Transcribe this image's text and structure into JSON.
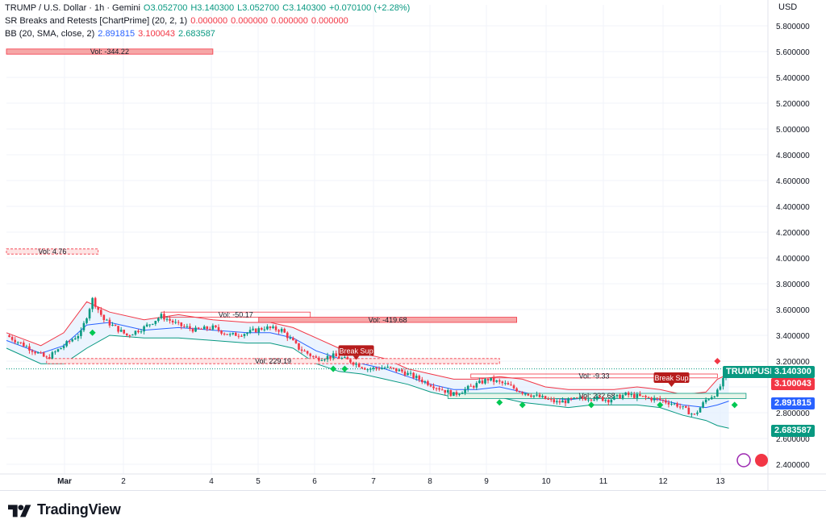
{
  "header": {
    "symbol_line": "TRUMP / U.S. Dollar · 1h · Gemini",
    "o": "O3.052700",
    "h": "H3.140300",
    "l": "L3.052700",
    "c": "C3.140300",
    "chg": "+0.070100 (+2.28%)",
    "sr_title": "SR Breaks and Retests [ChartPrime] (20, 2, 1)",
    "sr_values": [
      "0.000000",
      "0.000000",
      "0.000000",
      "0.000000"
    ],
    "bb_title": "BB (20, SMA, close, 2)",
    "bb_values": [
      "2.891815",
      "3.100043",
      "2.683587"
    ]
  },
  "currency": "USD",
  "colors": {
    "up": "#089981",
    "down": "#f23645",
    "basis": "#2962ff",
    "upper": "#f23645",
    "lower": "#089981",
    "fill": "#e3effd",
    "zone_red": "#f6a7a7",
    "zone_green": "#a5d6a7",
    "diamond": "#00c853"
  },
  "tags": {
    "last": {
      "label": "TRUMPUSD",
      "value": "3.140300",
      "color": "#089981"
    },
    "upper": {
      "value": "3.100043",
      "color": "#f23645"
    },
    "basis": {
      "value": "2.891815",
      "color": "#2962ff"
    },
    "lower": {
      "value": "2.683587",
      "color": "#089981"
    }
  },
  "brand": {
    "name": "TradingView"
  },
  "chart_data": {
    "type": "candlestick",
    "ylim": [
      2.4,
      5.9
    ],
    "y_ticks": [
      "5.800000",
      "5.600000",
      "5.400000",
      "5.200000",
      "5.000000",
      "4.800000",
      "4.600000",
      "4.400000",
      "4.200000",
      "4.000000",
      "3.800000",
      "3.600000",
      "3.400000",
      "3.200000",
      "3.000000",
      "2.800000",
      "2.600000",
      "2.400000"
    ],
    "x_ticks": [
      "Mar",
      "2",
      "4",
      "5",
      "6",
      "7",
      "8",
      "9",
      "10",
      "11",
      "12",
      "13"
    ],
    "close_path": [
      [
        0,
        3.4
      ],
      [
        4,
        3.3
      ],
      [
        7,
        3.22
      ],
      [
        10,
        3.32
      ],
      [
        13,
        3.42
      ],
      [
        15,
        3.68
      ],
      [
        17,
        3.52
      ],
      [
        19,
        3.46
      ],
      [
        21,
        3.4
      ],
      [
        24,
        3.46
      ],
      [
        27,
        3.55
      ],
      [
        30,
        3.48
      ],
      [
        33,
        3.44
      ],
      [
        36,
        3.46
      ],
      [
        39,
        3.4
      ],
      [
        42,
        3.42
      ],
      [
        45,
        3.46
      ],
      [
        48,
        3.44
      ],
      [
        51,
        3.3
      ],
      [
        54,
        3.22
      ],
      [
        57,
        3.24
      ],
      [
        60,
        3.2
      ],
      [
        63,
        3.14
      ],
      [
        66,
        3.15
      ],
      [
        69,
        3.12
      ],
      [
        72,
        3.06
      ],
      [
        75,
        3.0
      ],
      [
        78,
        2.94
      ],
      [
        81,
        3.0
      ],
      [
        84,
        3.06
      ],
      [
        87,
        3.02
      ],
      [
        90,
        2.96
      ],
      [
        93,
        2.92
      ],
      [
        96,
        2.88
      ],
      [
        99,
        2.9
      ],
      [
        102,
        2.92
      ],
      [
        105,
        2.9
      ],
      [
        108,
        2.94
      ],
      [
        111,
        2.92
      ],
      [
        114,
        2.9
      ],
      [
        117,
        2.86
      ],
      [
        120,
        2.78
      ],
      [
        122,
        2.9
      ],
      [
        124,
        2.96
      ],
      [
        126,
        3.14
      ]
    ],
    "upper_band": [
      [
        0,
        3.42
      ],
      [
        6,
        3.32
      ],
      [
        10,
        3.42
      ],
      [
        14,
        3.66
      ],
      [
        18,
        3.58
      ],
      [
        24,
        3.52
      ],
      [
        30,
        3.56
      ],
      [
        36,
        3.52
      ],
      [
        42,
        3.5
      ],
      [
        46,
        3.5
      ],
      [
        50,
        3.46
      ],
      [
        54,
        3.38
      ],
      [
        58,
        3.3
      ],
      [
        62,
        3.26
      ],
      [
        66,
        3.22
      ],
      [
        70,
        3.14
      ],
      [
        74,
        3.1
      ],
      [
        78,
        3.06
      ],
      [
        82,
        3.06
      ],
      [
        86,
        3.08
      ],
      [
        90,
        3.06
      ],
      [
        94,
        3.0
      ],
      [
        98,
        2.98
      ],
      [
        102,
        2.98
      ],
      [
        106,
        2.98
      ],
      [
        110,
        3.0
      ],
      [
        114,
        2.98
      ],
      [
        118,
        2.94
      ],
      [
        122,
        2.96
      ],
      [
        124,
        3.06
      ],
      [
        126,
        3.1
      ]
    ],
    "basis_band": [
      [
        0,
        3.36
      ],
      [
        6,
        3.26
      ],
      [
        10,
        3.32
      ],
      [
        14,
        3.48
      ],
      [
        18,
        3.5
      ],
      [
        24,
        3.44
      ],
      [
        30,
        3.46
      ],
      [
        36,
        3.44
      ],
      [
        42,
        3.42
      ],
      [
        46,
        3.42
      ],
      [
        50,
        3.38
      ],
      [
        54,
        3.28
      ],
      [
        58,
        3.22
      ],
      [
        62,
        3.18
      ],
      [
        66,
        3.14
      ],
      [
        70,
        3.08
      ],
      [
        74,
        3.02
      ],
      [
        78,
        2.98
      ],
      [
        82,
        2.98
      ],
      [
        86,
        3.0
      ],
      [
        90,
        2.96
      ],
      [
        94,
        2.92
      ],
      [
        98,
        2.9
      ],
      [
        102,
        2.92
      ],
      [
        106,
        2.92
      ],
      [
        110,
        2.92
      ],
      [
        114,
        2.9
      ],
      [
        118,
        2.86
      ],
      [
        122,
        2.84
      ],
      [
        124,
        2.86
      ],
      [
        126,
        2.89
      ]
    ],
    "lower_band": [
      [
        0,
        3.3
      ],
      [
        6,
        3.18
      ],
      [
        10,
        3.18
      ],
      [
        14,
        3.3
      ],
      [
        18,
        3.4
      ],
      [
        24,
        3.38
      ],
      [
        30,
        3.38
      ],
      [
        36,
        3.36
      ],
      [
        42,
        3.34
      ],
      [
        46,
        3.34
      ],
      [
        50,
        3.3
      ],
      [
        54,
        3.18
      ],
      [
        58,
        3.12
      ],
      [
        62,
        3.1
      ],
      [
        66,
        3.06
      ],
      [
        70,
        3.02
      ],
      [
        74,
        2.96
      ],
      [
        78,
        2.92
      ],
      [
        82,
        2.92
      ],
      [
        86,
        2.92
      ],
      [
        90,
        2.88
      ],
      [
        94,
        2.86
      ],
      [
        98,
        2.84
      ],
      [
        102,
        2.86
      ],
      [
        106,
        2.86
      ],
      [
        110,
        2.86
      ],
      [
        114,
        2.84
      ],
      [
        118,
        2.78
      ],
      [
        122,
        2.74
      ],
      [
        124,
        2.7
      ],
      [
        126,
        2.68
      ]
    ],
    "zones": [
      {
        "label": "Vol: -344.22",
        "y_top": 5.62,
        "y_bot": 5.58,
        "x0": 0,
        "x1": 36,
        "style": "red"
      },
      {
        "label": "Vol: 4.76",
        "y_top": 4.07,
        "y_bot": 4.03,
        "x0": 0,
        "x1": 16,
        "style": "red-dashed"
      },
      {
        "label": "Vol: -50.17",
        "y_top": 3.58,
        "y_bot": 3.54,
        "x0": 27,
        "x1": 53,
        "style": "red-outline"
      },
      {
        "label": "Vol: -419.68",
        "y_top": 3.54,
        "y_bot": 3.5,
        "x0": 44,
        "x1": 89,
        "style": "red"
      },
      {
        "label": "Vol: 229.19",
        "y_top": 3.22,
        "y_bot": 3.18,
        "x0": 7,
        "x1": 86,
        "style": "red-dashed"
      },
      {
        "label": "Vol: -9.33",
        "y_top": 3.1,
        "y_bot": 3.07,
        "x0": 81,
        "x1": 124,
        "style": "red-outline"
      },
      {
        "label": "Vol: 232.68",
        "y_top": 2.95,
        "y_bot": 2.91,
        "x0": 77,
        "x1": 129,
        "style": "green"
      }
    ],
    "break_labels": [
      {
        "label": "Break Sup",
        "x": 61,
        "y": 3.26
      },
      {
        "label": "Break Sup",
        "x": 116,
        "y": 3.05
      }
    ],
    "diamonds_green": [
      [
        15,
        3.42
      ],
      [
        57,
        3.14
      ],
      [
        59,
        3.14
      ],
      [
        86,
        2.88
      ],
      [
        90,
        2.86
      ],
      [
        102,
        2.86
      ],
      [
        114,
        2.86
      ],
      [
        127,
        2.86
      ]
    ],
    "diamonds_red": [
      [
        124,
        3.2
      ]
    ],
    "diamond_labels": []
  }
}
